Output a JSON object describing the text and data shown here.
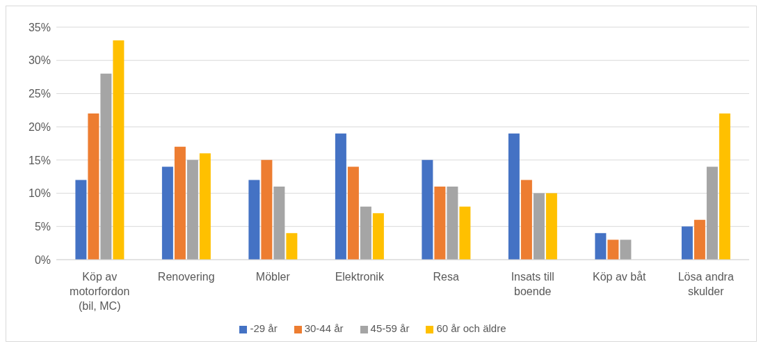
{
  "chart_data": {
    "type": "bar",
    "categories": [
      "Köp av motorfordon (bil, MC)",
      "Renovering",
      "Möbler",
      "Elektronik",
      "Resa",
      "Insats till boende",
      "Köp av båt",
      "Lösa andra skulder"
    ],
    "series": [
      {
        "name": "-29 år",
        "color": "#4472c4",
        "values": [
          12,
          14,
          12,
          19,
          15,
          19,
          4,
          5
        ]
      },
      {
        "name": "30-44 år",
        "color": "#ed7d31",
        "values": [
          22,
          17,
          15,
          14,
          11,
          12,
          3,
          6
        ]
      },
      {
        "name": "45-59 år",
        "color": "#a5a5a5",
        "values": [
          28,
          15,
          11,
          8,
          11,
          10,
          3,
          14
        ]
      },
      {
        "name": "60 år och äldre",
        "color": "#ffc000",
        "values": [
          33,
          16,
          4,
          7,
          8,
          10,
          null,
          22
        ]
      }
    ],
    "ylim": [
      0,
      35
    ],
    "yticks": [
      {
        "value": 0,
        "label": "0%"
      },
      {
        "value": 5,
        "label": "5%"
      },
      {
        "value": 10,
        "label": "10%"
      },
      {
        "value": 15,
        "label": "15%"
      },
      {
        "value": 20,
        "label": "20%"
      },
      {
        "value": 25,
        "label": "25%"
      },
      {
        "value": 30,
        "label": "30%"
      },
      {
        "value": 35,
        "label": "35%"
      }
    ],
    "grid": "y",
    "legend": "bottom"
  }
}
